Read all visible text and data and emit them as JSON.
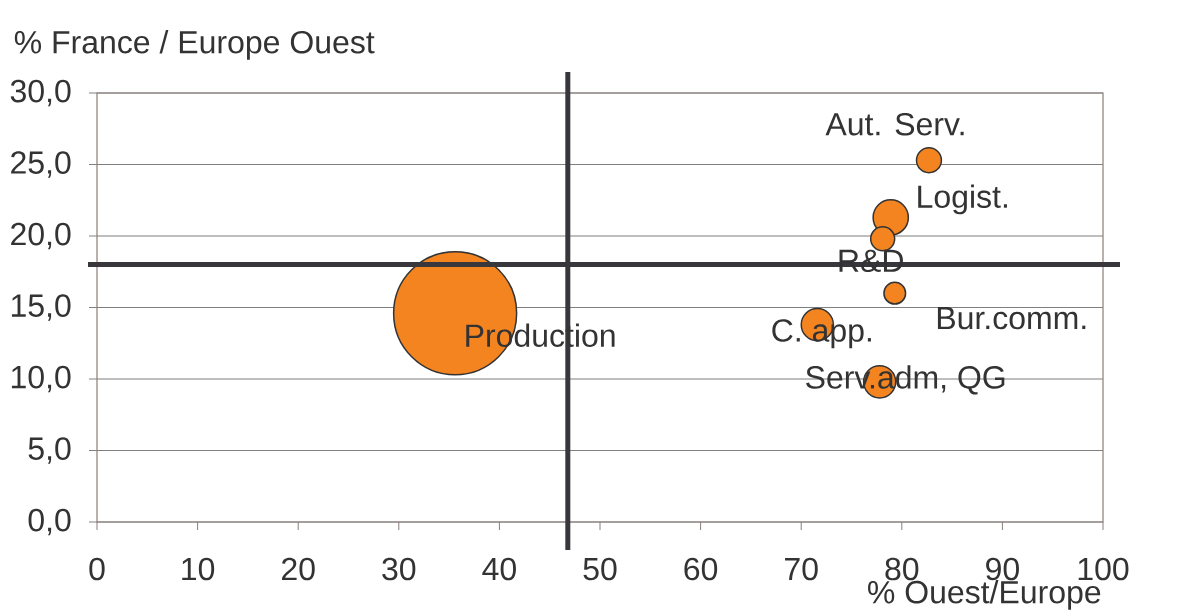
{
  "chart_data": {
    "type": "bubble",
    "xlabel": "% Ouest/Europe",
    "ylabel": "% France / Europe Ouest",
    "series": [
      {
        "color": "#f48420",
        "x": [
          35.6,
          82.7,
          78.9,
          78.1,
          79.3,
          71.6,
          77.8
        ],
        "values": [
          14.6,
          25.3,
          21.3,
          19.8,
          16.0,
          13.8,
          9.8
        ],
        "sizes": [
          1,
          0.041,
          0.082,
          0.038,
          0.031,
          0.068,
          0.068
        ]
      }
    ],
    "annotations": [
      {
        "text": "Production",
        "x": 35.6,
        "y": 14.6
      },
      {
        "text": "Aut. Serv.",
        "x": 82.7,
        "y": 25.3
      },
      {
        "text": "Logist.",
        "x": 78.9,
        "y": 21.3
      },
      {
        "text": "R&D",
        "x": 78.1,
        "y": 19.8
      },
      {
        "text": "Bur.comm.",
        "x": 79.3,
        "y": 16.0
      },
      {
        "text": "C. app.",
        "x": 71.6,
        "y": 13.8
      },
      {
        "text": "Serv.adm, QG",
        "x": 77.8,
        "y": 9.8
      }
    ],
    "xlim": [
      0,
      100
    ],
    "ylim": [
      0,
      30
    ],
    "xticks": [
      0,
      10,
      20,
      30,
      40,
      50,
      60,
      70,
      80,
      90,
      100
    ],
    "yticks": [
      {
        "value": 0,
        "label": "0,0"
      },
      {
        "value": 5,
        "label": "5,0"
      },
      {
        "value": 10,
        "label": "10,0"
      },
      {
        "value": 15,
        "label": "15,0"
      },
      {
        "value": 20,
        "label": "20,0"
      },
      {
        "value": 25,
        "label": "25,0"
      },
      {
        "value": 30,
        "label": "30,0"
      }
    ],
    "grid": "y",
    "ref_lines": [
      {
        "axis": "x",
        "value": 46.8,
        "color": "#38373c"
      },
      {
        "axis": "y",
        "value": 18.0,
        "color": "#38373c"
      }
    ]
  }
}
